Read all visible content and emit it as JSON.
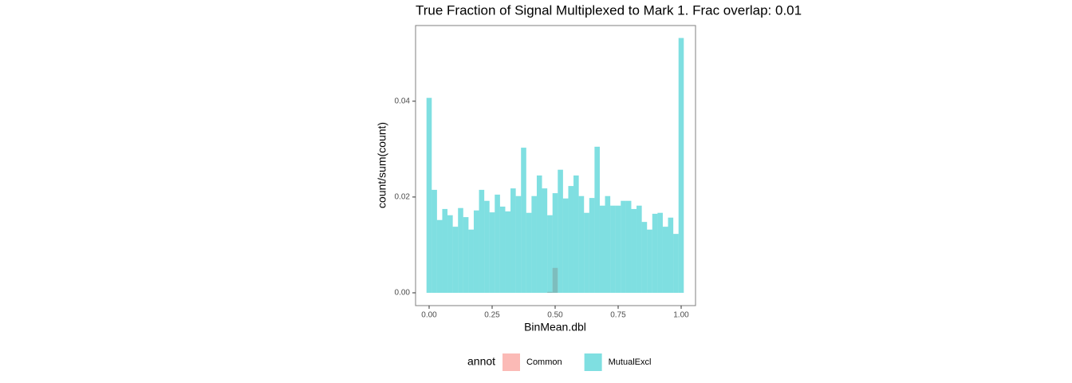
{
  "chart_data": {
    "type": "histogram",
    "title": "True Fraction of Signal Multiplexed to Mark 1. Frac overlap:  0.01",
    "x_label": "BinMean.dbl",
    "y_label": "count/sum(count)",
    "legend_title": "annot",
    "bins": [
      -0.0104,
      0.0104,
      0.0313,
      0.0521,
      0.0729,
      0.0938,
      0.1146,
      0.1354,
      0.1563,
      0.1771,
      0.1979,
      0.2188,
      0.2396,
      0.2604,
      0.2813,
      0.3021,
      0.3229,
      0.3438,
      0.3646,
      0.3854,
      0.4063,
      0.4271,
      0.4479,
      0.4688,
      0.4896,
      0.5104,
      0.5313,
      0.5521,
      0.5729,
      0.5938,
      0.6146,
      0.6354,
      0.6563,
      0.6771,
      0.6979,
      0.7188,
      0.7396,
      0.7604,
      0.7813,
      0.8021,
      0.8229,
      0.8438,
      0.8646,
      0.8854,
      0.9063,
      0.9271,
      0.9479,
      0.9688,
      0.9896,
      1.0104
    ],
    "series": [
      {
        "name": "Common",
        "color": "#F8766D",
        "values": [
          0,
          0,
          0,
          0,
          0,
          0,
          0,
          0,
          0,
          0,
          0,
          0,
          0,
          0,
          0,
          0,
          0,
          0,
          0,
          0,
          0,
          0,
          0,
          0.0002,
          0.0052,
          0,
          0,
          0,
          0,
          0,
          0,
          0,
          0,
          0,
          0,
          0,
          0,
          0,
          0,
          0,
          0,
          0,
          0,
          0,
          0,
          0,
          0,
          0,
          0
        ]
      },
      {
        "name": "MutualExcl",
        "color": "#00BFC4",
        "values": [
          0.0407,
          0.0215,
          0.0152,
          0.0175,
          0.0162,
          0.0138,
          0.0177,
          0.0158,
          0.0132,
          0.0172,
          0.0215,
          0.0192,
          0.0168,
          0.0205,
          0.018,
          0.017,
          0.0218,
          0.0202,
          0.0303,
          0.0167,
          0.0202,
          0.0245,
          0.0218,
          0.0162,
          0.0208,
          0.0257,
          0.0197,
          0.0223,
          0.0245,
          0.0202,
          0.0167,
          0.0198,
          0.0305,
          0.0182,
          0.0202,
          0.0182,
          0.0182,
          0.0192,
          0.0192,
          0.0175,
          0.0182,
          0.0148,
          0.0132,
          0.0165,
          0.0167,
          0.0138,
          0.0157,
          0.0123,
          0.0532
        ]
      }
    ],
    "xlim": [
      -0.0538,
      1.057
    ],
    "ylim": [
      -0.00267,
      0.0558
    ],
    "xticks": [
      {
        "value": 0,
        "label": "0.00"
      },
      {
        "value": 0.25,
        "label": "0.25"
      },
      {
        "value": 0.5,
        "label": "0.50"
      },
      {
        "value": 0.75,
        "label": "0.75"
      },
      {
        "value": 1,
        "label": "1.00"
      }
    ],
    "yticks": [
      {
        "value": 0,
        "label": "0.00"
      },
      {
        "value": 0.02,
        "label": "0.02"
      },
      {
        "value": 0.04,
        "label": "0.04"
      }
    ],
    "grid": false,
    "legend_position": "bottom"
  }
}
